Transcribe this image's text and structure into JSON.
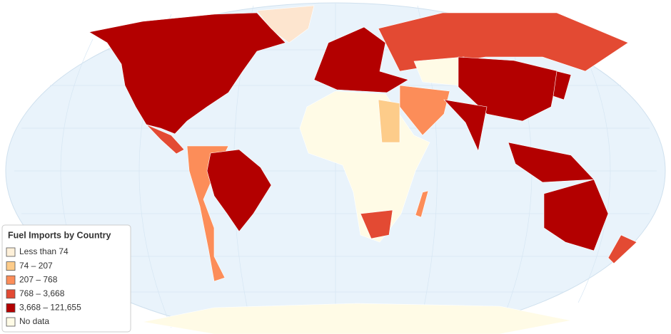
{
  "legend": {
    "title": "Fuel Imports by Country",
    "items": [
      {
        "label": "Less than 74",
        "color": "#fef0d9"
      },
      {
        "label": "74 – 207",
        "color": "#fdcc8a"
      },
      {
        "label": "207 – 768",
        "color": "#fc8d59"
      },
      {
        "label": "768 – 3,668",
        "color": "#e34a33"
      },
      {
        "label": "3,668 – 121,655",
        "color": "#b30000"
      },
      {
        "label": "No data",
        "color": "#fffbe6"
      }
    ]
  }
}
